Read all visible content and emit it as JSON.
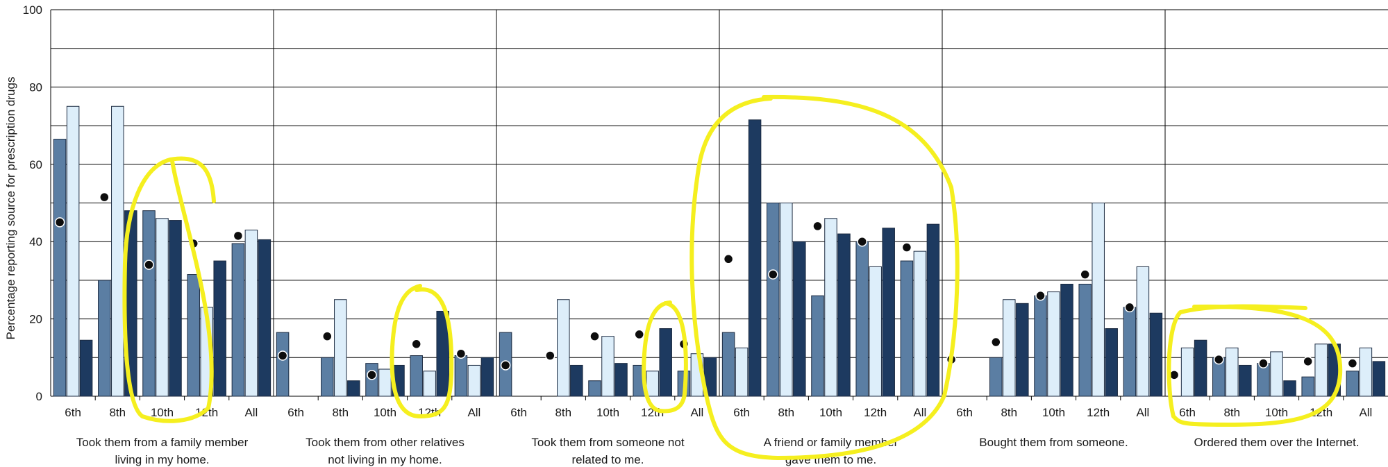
{
  "colors": {
    "series_a": "#5b7ea3",
    "series_b": "#ddeefa",
    "series_c": "#1d3a60",
    "marker": "#0d0d0d",
    "highlight": "#f5ef1f"
  },
  "chart_data": {
    "type": "bar",
    "ylabel": "Percentage reporting source for prescription drugs",
    "ylim": [
      0,
      100
    ],
    "yticks": [
      0,
      20,
      40,
      60,
      80,
      100
    ],
    "grid": true,
    "subcategories": [
      "6th",
      "8th",
      "10th",
      "12th",
      "All"
    ],
    "groups": [
      {
        "label_lines": [
          "Took them from a family member",
          "living in my home."
        ],
        "series": [
          {
            "values": [
              66.5,
              30,
              48,
              31.5,
              39.5
            ]
          },
          {
            "values": [
              75,
              75,
              46,
              23,
              43
            ]
          },
          {
            "values": [
              14.5,
              48,
              45.5,
              35,
              40.5
            ]
          }
        ],
        "markers": [
          45,
          51.5,
          34,
          39.5,
          41.5
        ]
      },
      {
        "label_lines": [
          "Took them from other relatives",
          "not living in my home."
        ],
        "series": [
          {
            "values": [
              16.5,
              10,
              8.5,
              10.5,
              10.5
            ]
          },
          {
            "values": [
              0,
              25,
              7,
              6.5,
              8
            ]
          },
          {
            "values": [
              0,
              4,
              8,
              22,
              10
            ]
          }
        ],
        "markers": [
          10.5,
          15.5,
          5.5,
          13.5,
          11
        ]
      },
      {
        "label_lines": [
          "Took them from someone not",
          "related to me."
        ],
        "series": [
          {
            "values": [
              16.5,
              0,
              4,
              8,
              6.5
            ]
          },
          {
            "values": [
              0,
              25,
              15.5,
              6.5,
              11
            ]
          },
          {
            "values": [
              0,
              8,
              8.5,
              17.5,
              10
            ]
          }
        ],
        "markers": [
          8,
          10.5,
          15.5,
          16,
          13.5
        ]
      },
      {
        "label_lines": [
          "A friend or family member",
          "gave them to me."
        ],
        "series": [
          {
            "values": [
              16.5,
              50,
              26,
              40,
              35
            ]
          },
          {
            "values": [
              12.5,
              50,
              46,
              33.5,
              37.5
            ]
          },
          {
            "values": [
              71.5,
              40,
              42,
              43.5,
              44.5
            ]
          }
        ],
        "markers": [
          35.5,
          31.5,
          44,
          40,
          38.5
        ]
      },
      {
        "label_lines": [
          "Bought them from someone."
        ],
        "series": [
          {
            "values": [
              0,
              10,
              26,
              29,
              23
            ]
          },
          {
            "values": [
              0,
              25,
              27,
              50,
              33.5
            ]
          },
          {
            "values": [
              0,
              24,
              29,
              17.5,
              21.5
            ]
          }
        ],
        "markers": [
          9.5,
          14,
          26,
          31.5,
          23
        ]
      },
      {
        "label_lines": [
          "Ordered them over the Internet."
        ],
        "series": [
          {
            "values": [
              0,
              10,
              8.5,
              5,
              6.5
            ]
          },
          {
            "values": [
              12.5,
              12.5,
              11.5,
              13.5,
              12.5
            ]
          },
          {
            "values": [
              14.5,
              8,
              4,
              13.5,
              9
            ]
          }
        ],
        "markers": [
          5.5,
          9.5,
          8.5,
          9,
          8.5
        ]
      }
    ]
  }
}
